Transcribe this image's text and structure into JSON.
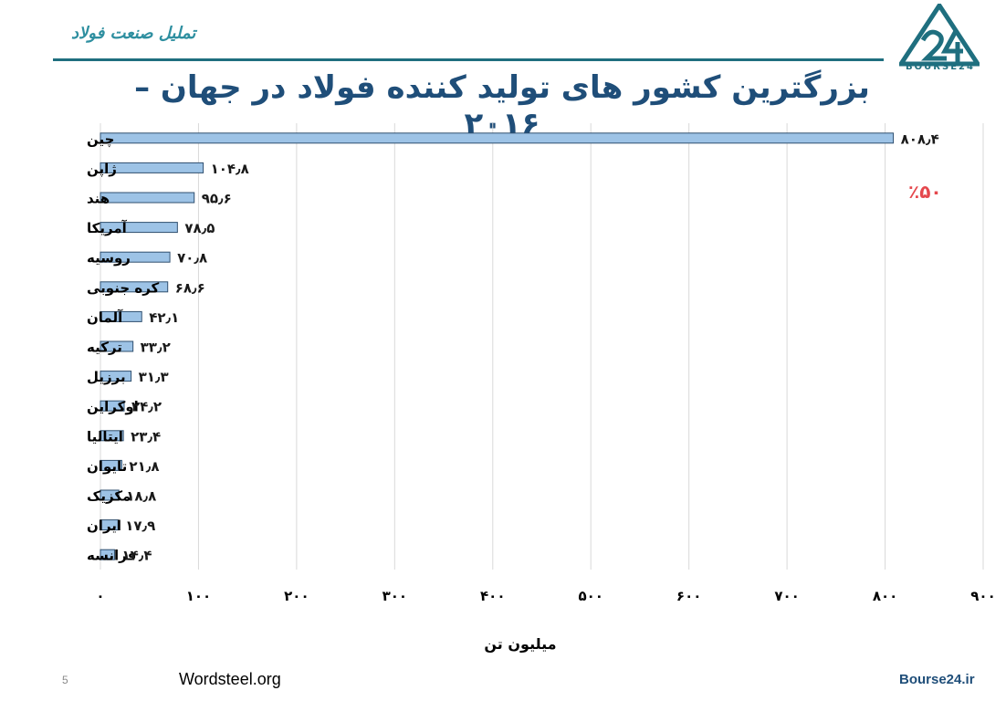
{
  "header": {
    "brand": "تملیل صنعت فولاد",
    "logo_text": "BOURSE24"
  },
  "title": "بزرگترین کشور های تولید کننده فولاد در جهان – ۲۰۱۶",
  "share_note": "٪۵۰",
  "footer": {
    "page": "5",
    "source": "Wordsteel.org",
    "site": "Bourse24.ir"
  },
  "colors": {
    "bar_fill": "#9dc3e6",
    "bar_stroke": "#2f4f6f",
    "title": "#1f4e79",
    "accent": "#e5484d",
    "rule": "#1f6f7f"
  },
  "chart_data": {
    "type": "bar",
    "orientation": "horizontal",
    "categories": [
      "چین",
      "ژاپن",
      "هند",
      "آمریکا",
      "روسیه",
      "کره جنوبی",
      "آلمان",
      "ترکیه",
      "برزیل",
      "اوکراین",
      "ایتالیا",
      "تایوان",
      "مکزیک",
      "ایران",
      "فرانسه"
    ],
    "values": [
      808.4,
      104.8,
      95.6,
      78.5,
      70.8,
      68.6,
      42.1,
      33.2,
      31.3,
      24.2,
      23.4,
      21.8,
      18.8,
      17.9,
      14.4
    ],
    "value_labels": [
      "۸۰۸٫۴",
      "۱۰۴٫۸",
      "۹۵٫۶",
      "۷۸٫۵",
      "۷۰٫۸",
      "۶۸٫۶",
      "۴۲٫۱",
      "۳۳٫۲",
      "۳۱٫۳",
      "۲۴٫۲",
      "۲۳٫۴",
      "۲۱٫۸",
      "۱۸٫۸",
      "۱۷٫۹",
      "۱۴٫۴"
    ],
    "xlim": [
      0,
      900
    ],
    "xticks": [
      0,
      100,
      200,
      300,
      400,
      500,
      600,
      700,
      800,
      900
    ],
    "xtick_labels": [
      "۰",
      "۱۰۰",
      "۲۰۰",
      "۳۰۰",
      "۴۰۰",
      "۵۰۰",
      "۶۰۰",
      "۷۰۰",
      "۸۰۰",
      "۹۰۰"
    ],
    "xlabel": "میلیون تن",
    "ylabel": "",
    "grid": "vertical"
  }
}
